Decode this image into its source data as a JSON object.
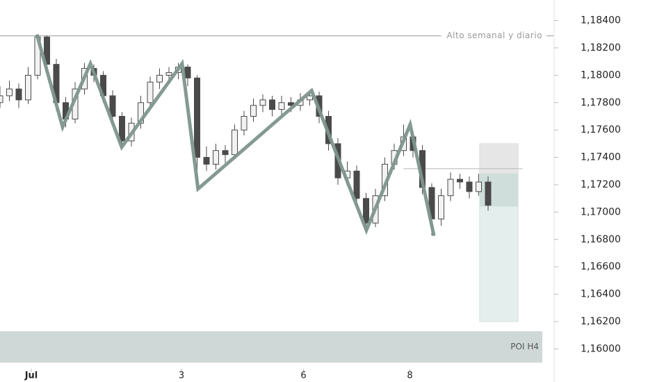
{
  "chart_data": {
    "type": "candlestick",
    "xlim": [
      0,
      176
    ],
    "ylim": [
      1.1586,
      1.1855
    ],
    "xticks": [
      {
        "value": 10,
        "label": "Jul"
      },
      {
        "value": 58,
        "label": "3"
      },
      {
        "value": 97,
        "label": "6"
      },
      {
        "value": 131,
        "label": "8"
      }
    ],
    "yticks": [
      {
        "value": 1.16,
        "label": "1,16000"
      },
      {
        "value": 1.162,
        "label": "1,16200"
      },
      {
        "value": 1.164,
        "label": "1,16400"
      },
      {
        "value": 1.166,
        "label": "1,16600"
      },
      {
        "value": 1.168,
        "label": "1,16800"
      },
      {
        "value": 1.17,
        "label": "1,17000"
      },
      {
        "value": 1.172,
        "label": "1,17200"
      },
      {
        "value": 1.174,
        "label": "1,17400"
      },
      {
        "value": 1.176,
        "label": "1,17600"
      },
      {
        "value": 1.178,
        "label": "1,17800"
      },
      {
        "value": 1.18,
        "label": "1,18000"
      },
      {
        "value": 1.182,
        "label": "1,18200"
      },
      {
        "value": 1.184,
        "label": "1,18400"
      }
    ],
    "up_color": "#f2f2f2",
    "down_color": "#4a4a4a",
    "candles": [
      [
        0,
        1.178,
        1.1792,
        1.1776,
        1.1785
      ],
      [
        3,
        1.1785,
        1.1796,
        1.1781,
        1.179
      ],
      [
        6,
        1.179,
        1.1794,
        1.1776,
        1.1782
      ],
      [
        9,
        1.1782,
        1.1806,
        1.1779,
        1.18
      ],
      [
        12,
        1.18,
        1.183,
        1.1797,
        1.1828
      ],
      [
        15,
        1.1828,
        1.1829,
        1.1803,
        1.1808
      ],
      [
        18,
        1.1808,
        1.1812,
        1.1774,
        1.178
      ],
      [
        21,
        1.178,
        1.1784,
        1.1762,
        1.1768
      ],
      [
        24,
        1.1768,
        1.1795,
        1.1765,
        1.179
      ],
      [
        27,
        1.179,
        1.1809,
        1.1786,
        1.1805
      ],
      [
        30,
        1.1805,
        1.1808,
        1.1795,
        1.18
      ],
      [
        33,
        1.18,
        1.1803,
        1.178,
        1.1785
      ],
      [
        36,
        1.1785,
        1.1789,
        1.1765,
        1.177
      ],
      [
        39,
        1.177,
        1.1773,
        1.1747,
        1.1752
      ],
      [
        42,
        1.1752,
        1.1769,
        1.1748,
        1.1765
      ],
      [
        45,
        1.1765,
        1.1785,
        1.1761,
        1.178
      ],
      [
        48,
        1.178,
        1.1799,
        1.1776,
        1.1795
      ],
      [
        51,
        1.1795,
        1.1805,
        1.179,
        1.18
      ],
      [
        54,
        1.18,
        1.1806,
        1.1794,
        1.1802
      ],
      [
        57,
        1.1802,
        1.1809,
        1.1797,
        1.1806
      ],
      [
        60,
        1.1806,
        1.1808,
        1.1792,
        1.1798
      ],
      [
        63,
        1.1798,
        1.18,
        1.1717,
        1.174
      ],
      [
        66,
        1.174,
        1.1748,
        1.173,
        1.1735
      ],
      [
        69,
        1.1735,
        1.175,
        1.1731,
        1.1745
      ],
      [
        72,
        1.1745,
        1.1749,
        1.1736,
        1.1742
      ],
      [
        75,
        1.1742,
        1.1764,
        1.1739,
        1.176
      ],
      [
        78,
        1.176,
        1.1774,
        1.1756,
        1.177
      ],
      [
        81,
        1.177,
        1.1783,
        1.1766,
        1.1778
      ],
      [
        84,
        1.1778,
        1.1786,
        1.1773,
        1.1782
      ],
      [
        87,
        1.1782,
        1.1785,
        1.177,
        1.1775
      ],
      [
        90,
        1.1775,
        1.1785,
        1.1771,
        1.178
      ],
      [
        93,
        1.178,
        1.1784,
        1.1773,
        1.1778
      ],
      [
        96,
        1.1778,
        1.1787,
        1.1774,
        1.1782
      ],
      [
        99,
        1.1782,
        1.1789,
        1.1778,
        1.1785
      ],
      [
        102,
        1.1785,
        1.1788,
        1.1765,
        1.177
      ],
      [
        105,
        1.177,
        1.1774,
        1.1745,
        1.175
      ],
      [
        108,
        1.175,
        1.1754,
        1.172,
        1.1725
      ],
      [
        111,
        1.1725,
        1.1737,
        1.1719,
        1.173
      ],
      [
        114,
        1.173,
        1.1734,
        1.1705,
        1.171
      ],
      [
        117,
        1.171,
        1.1714,
        1.1687,
        1.1692
      ],
      [
        120,
        1.1692,
        1.1717,
        1.1689,
        1.1712
      ],
      [
        123,
        1.1712,
        1.174,
        1.1708,
        1.1735
      ],
      [
        126,
        1.1735,
        1.175,
        1.1731,
        1.1745
      ],
      [
        129,
        1.1745,
        1.1764,
        1.1741,
        1.1755
      ],
      [
        132,
        1.1755,
        1.1759,
        1.174,
        1.1745
      ],
      [
        135,
        1.1745,
        1.1749,
        1.1713,
        1.1718
      ],
      [
        138,
        1.1718,
        1.1721,
        1.1683,
        1.1695
      ],
      [
        141,
        1.1695,
        1.1717,
        1.169,
        1.1712
      ],
      [
        144,
        1.1712,
        1.1729,
        1.1708,
        1.1724
      ],
      [
        147,
        1.1724,
        1.1728,
        1.1717,
        1.1722
      ],
      [
        150,
        1.1722,
        1.1726,
        1.171,
        1.1715
      ],
      [
        153,
        1.1715,
        1.1728,
        1.1712,
        1.1722
      ],
      [
        156,
        1.1722,
        1.1726,
        1.1701,
        1.1705
      ]
    ],
    "zigzag": {
      "color": "#7d958c",
      "x": [
        11.8,
        20,
        28.9,
        38.9,
        58.2,
        63.3,
        99.6,
        117.1,
        131.1,
        138.7
      ],
      "y": [
        1.18298,
        1.17622,
        1.18085,
        1.17475,
        1.18085,
        1.1717,
        1.17888,
        1.16868,
        1.1764,
        1.16827
      ]
    },
    "levels": [
      {
        "label": "Alto semanal y diario",
        "value": 1.18288,
        "color": "#9a9a9a"
      },
      {
        "value": 1.17317,
        "color": "#b5b5b5",
        "x": [
          129,
          167
        ]
      }
    ],
    "position": {
      "x": [
        153.3,
        165.6
      ],
      "stop": 1.175,
      "entry": 1.1728,
      "current": 1.1704,
      "target": 1.162
    },
    "zones": [
      {
        "label": "POI H4",
        "top": 1.1613,
        "bottom": 1.159,
        "color": "#cfd8d6"
      }
    ]
  }
}
